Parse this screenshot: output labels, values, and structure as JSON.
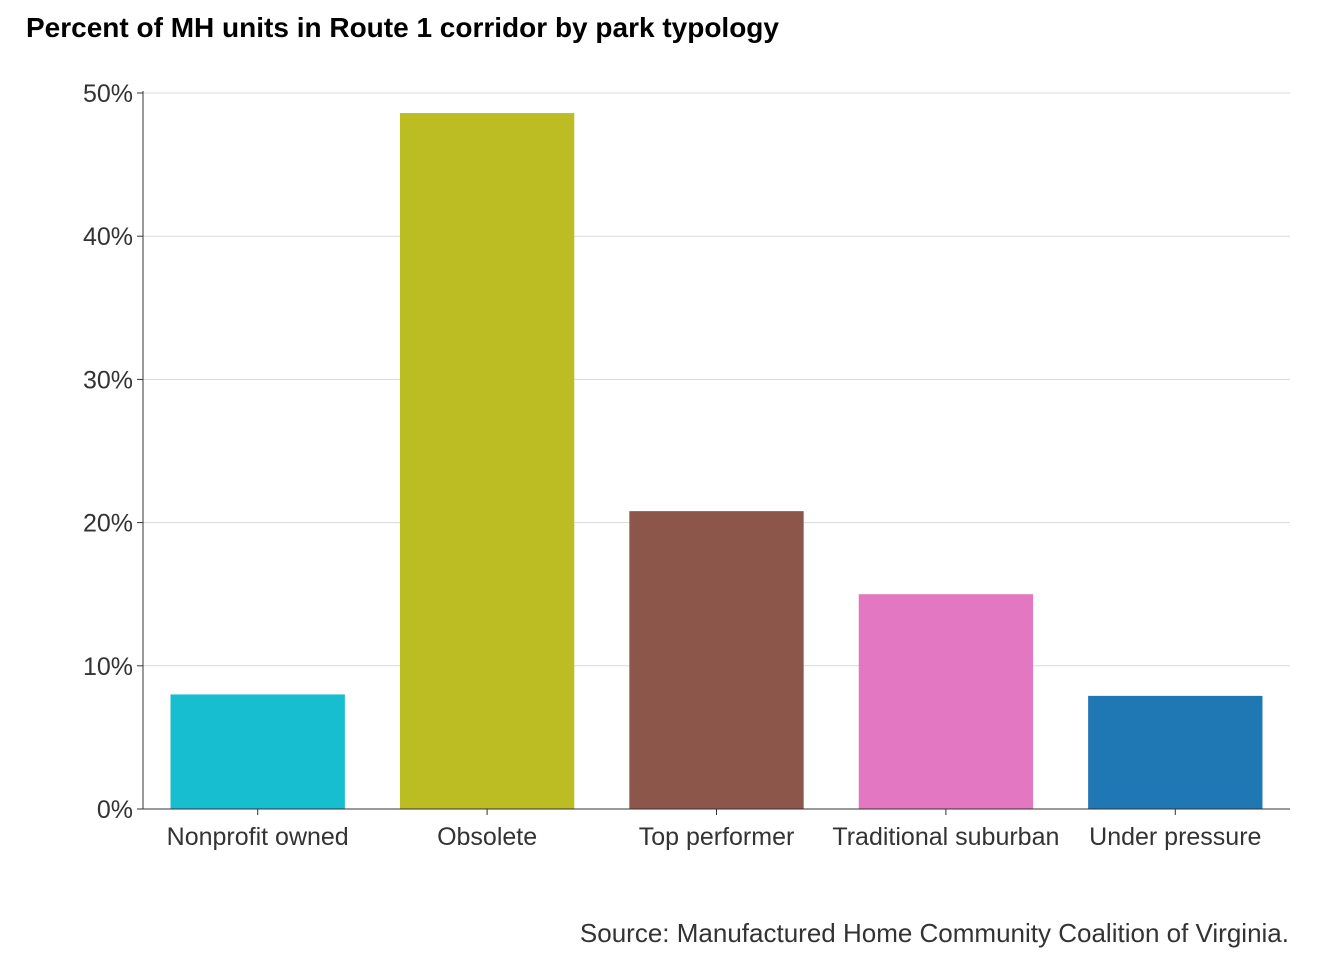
{
  "chart_data": {
    "type": "bar",
    "title": "Percent of MH units in Route 1 corridor by park typology",
    "xlabel": "",
    "ylabel": "",
    "categories": [
      "Nonprofit owned",
      "Obsolete",
      "Top performer",
      "Traditional suburban",
      "Under pressure"
    ],
    "values": [
      8.0,
      48.6,
      20.8,
      15.0,
      7.9
    ],
    "colors": [
      "#17BECF",
      "#BCBD22",
      "#8C564B",
      "#E377C2",
      "#1F77B4"
    ],
    "ylim": [
      0,
      50
    ],
    "yticks": [
      0,
      10,
      20,
      30,
      40,
      50
    ],
    "ytick_labels": [
      "0%",
      "10%",
      "20%",
      "30%",
      "40%",
      "50%"
    ],
    "grid": "horizontal",
    "legend": "none",
    "source": "Source: Manufactured Home Community Coalition of Virginia."
  }
}
